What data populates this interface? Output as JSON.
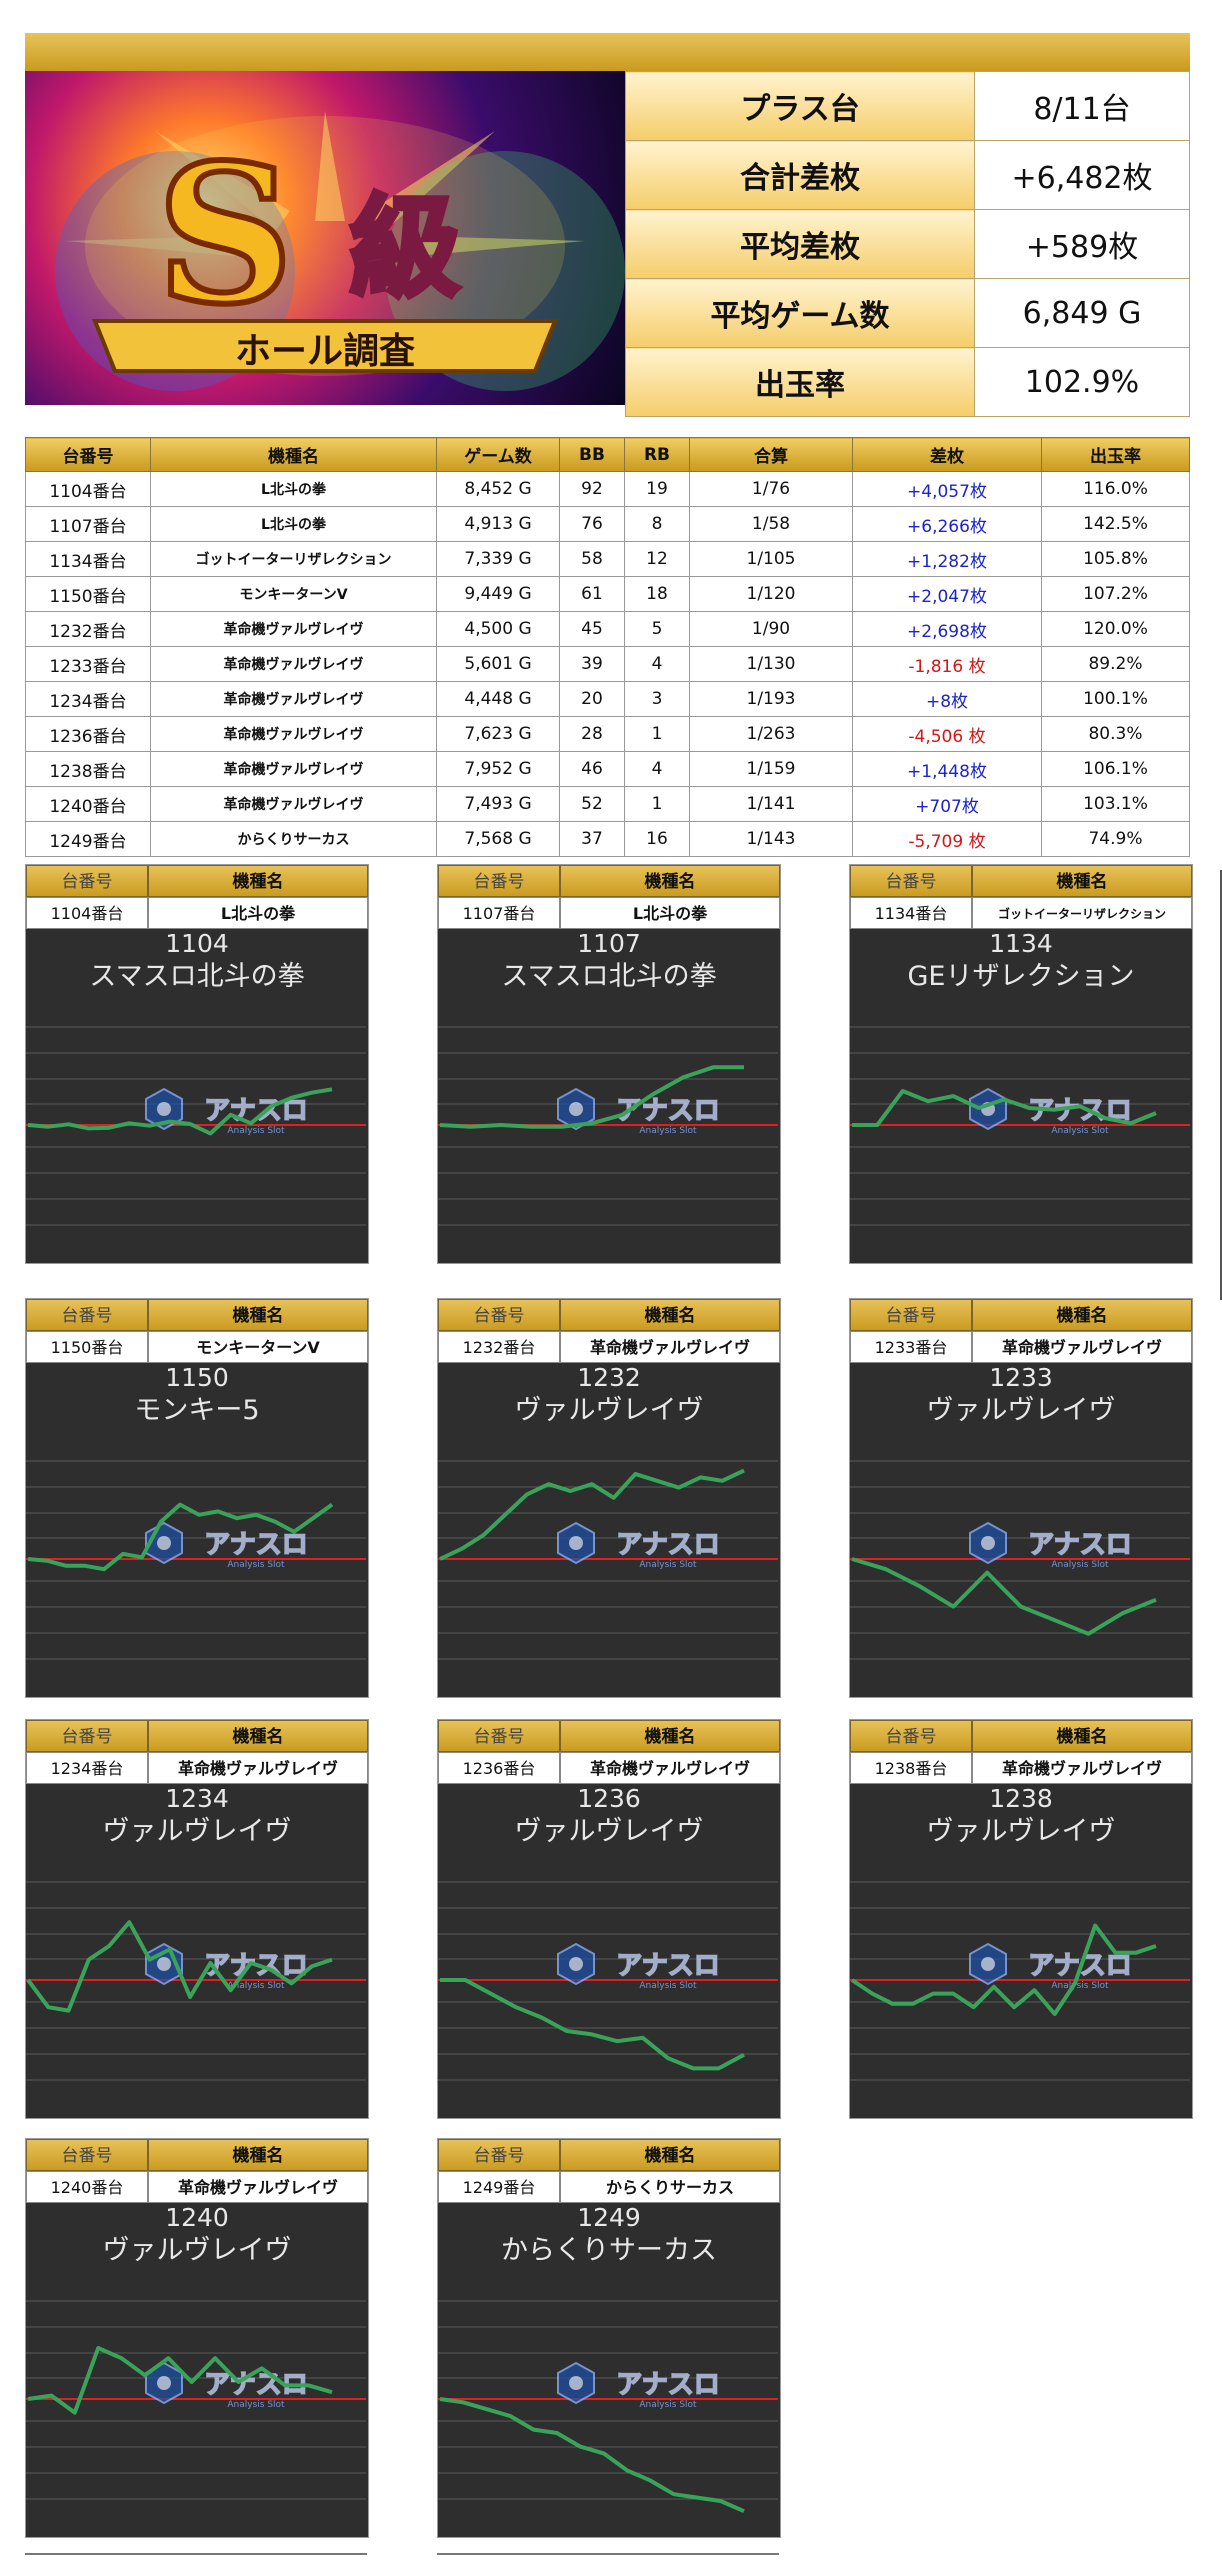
{
  "banner": {
    "logo_letter": "S",
    "logo_kanji": "級",
    "logo_ribbon": "ホール調査"
  },
  "summary": [
    {
      "label": "プラス台",
      "value": "8/11台"
    },
    {
      "label": "合計差枚",
      "value": "+6,482枚"
    },
    {
      "label": "平均差枚",
      "value": "+589枚"
    },
    {
      "label": "平均ゲーム数",
      "value": "6,849 G"
    },
    {
      "label": "出玉率",
      "value": "102.9%"
    }
  ],
  "table": {
    "headers": [
      "台番号",
      "機種名",
      "ゲーム数",
      "BB",
      "RB",
      "合算",
      "差枚",
      "出玉率"
    ],
    "rows": [
      [
        "1104番台",
        "L北斗の拳",
        "8,452 G",
        "92",
        "19",
        "1/76",
        "+4,057枚",
        "116.0%"
      ],
      [
        "1107番台",
        "L北斗の拳",
        "4,913 G",
        "76",
        "8",
        "1/58",
        "+6,266枚",
        "142.5%"
      ],
      [
        "1134番台",
        "ゴットイーターリザレクション",
        "7,339 G",
        "58",
        "12",
        "1/105",
        "+1,282枚",
        "105.8%"
      ],
      [
        "1150番台",
        "モンキーターンV",
        "9,449 G",
        "61",
        "18",
        "1/120",
        "+2,047枚",
        "107.2%"
      ],
      [
        "1232番台",
        "革命機ヴァルヴレイヴ",
        "4,500 G",
        "45",
        "5",
        "1/90",
        "+2,698枚",
        "120.0%"
      ],
      [
        "1233番台",
        "革命機ヴァルヴレイヴ",
        "5,601 G",
        "39",
        "4",
        "1/130",
        "-1,816 枚",
        "89.2%"
      ],
      [
        "1234番台",
        "革命機ヴァルヴレイヴ",
        "4,448 G",
        "20",
        "3",
        "1/193",
        "+8枚",
        "100.1%"
      ],
      [
        "1236番台",
        "革命機ヴァルヴレイヴ",
        "7,623 G",
        "28",
        "1",
        "1/263",
        "-4,506 枚",
        "80.3%"
      ],
      [
        "1238番台",
        "革命機ヴァルヴレイヴ",
        "7,952 G",
        "46",
        "4",
        "1/159",
        "+1,448枚",
        "106.1%"
      ],
      [
        "1240番台",
        "革命機ヴァルヴレイヴ",
        "7,493 G",
        "52",
        "1",
        "1/141",
        "+707枚",
        "103.1%"
      ],
      [
        "1249番台",
        "からくりサーカス",
        "7,568 G",
        "37",
        "16",
        "1/143",
        "-5,709 枚",
        "74.9%"
      ]
    ]
  },
  "cards_header": {
    "col_a": "台番号",
    "col_b": "機種名"
  },
  "watermark": {
    "brand": "アナスロ",
    "sub": "Analysis Slot"
  },
  "colors": {
    "line": "#3aa35a",
    "zero_line": "#e02020",
    "card_bg": "#2e2e2e",
    "positive": "#1d24c9",
    "negative": "#d31616"
  },
  "cards": [
    {
      "machine": "1104番台",
      "model": "L北斗の拳",
      "num": "1104",
      "title": "スマスロ北斗の拳",
      "graph": [
        0,
        -0.05,
        0.02,
        -0.1,
        -0.08,
        0.05,
        -0.02,
        0.1,
        0.03,
        -0.25,
        0.3,
        0.05,
        0.55,
        0.8,
        0.95,
        1.05
      ]
    },
    {
      "machine": "1107番台",
      "model": "L北斗の拳",
      "num": "1107",
      "title": "スマスロ北斗の拳",
      "graph": [
        0,
        -0.05,
        0,
        -0.05,
        -0.05,
        0.05,
        0.3,
        0.9,
        1.4,
        1.7,
        1.7
      ]
    },
    {
      "machine": "1134番台",
      "model": "ゴットイーターリザレクション",
      "num": "1134",
      "title": "GEリザレクション",
      "graph": [
        0,
        0,
        1.0,
        0.7,
        0.85,
        0.5,
        0.75,
        0.5,
        0.45,
        0.55,
        0.2,
        0.05,
        0.35
      ]
    },
    {
      "machine": "1150番台",
      "model": "モンキーターンV",
      "num": "1150",
      "title": "モンキー5",
      "graph": [
        0,
        -0.05,
        -0.2,
        -0.2,
        -0.3,
        0.15,
        0.05,
        1.1,
        1.6,
        1.3,
        1.4,
        1.2,
        1.3,
        1.1,
        0.8,
        1.2,
        1.6
      ]
    },
    {
      "machine": "1232番台",
      "model": "革命機ヴァルヴレイヴ",
      "num": "1232",
      "title": "ヴァルヴレイヴ",
      "graph": [
        0,
        0.3,
        0.7,
        1.3,
        1.9,
        2.2,
        2.0,
        2.2,
        1.8,
        2.5,
        2.3,
        2.1,
        2.4,
        2.3,
        2.6
      ]
    },
    {
      "machine": "1233番台",
      "model": "革命機ヴァルヴレイヴ",
      "num": "1233",
      "title": "ヴァルヴレイヴ",
      "graph": [
        0,
        -0.3,
        -0.8,
        -1.4,
        -0.4,
        -1.4,
        -1.8,
        -2.2,
        -1.6,
        -1.2
      ]
    },
    {
      "machine": "1234番台",
      "model": "革命機ヴァルヴレイヴ",
      "num": "1234",
      "title": "ヴァルヴレイヴ",
      "graph": [
        0,
        -0.8,
        -0.9,
        0.6,
        1.0,
        1.7,
        0.6,
        0.9,
        -0.5,
        0.5,
        -0.3,
        0.5,
        0.3,
        -0.1,
        0.4,
        0.6
      ]
    },
    {
      "machine": "1236番台",
      "model": "革命機ヴァルヴレイヴ",
      "num": "1236",
      "title": "ヴァルヴレイヴ",
      "graph": [
        0,
        0,
        -0.4,
        -0.8,
        -1.1,
        -1.5,
        -1.6,
        -1.8,
        -1.7,
        -2.3,
        -2.6,
        -2.6,
        -2.2
      ]
    },
    {
      "machine": "1238番台",
      "model": "革命機ヴァルヴレイヴ",
      "num": "1238",
      "title": "ヴァルヴレイヴ",
      "graph": [
        0,
        -0.4,
        -0.7,
        -0.7,
        -0.4,
        -0.4,
        -0.8,
        -0.2,
        -0.8,
        -0.3,
        -1.0,
        -0.1,
        1.6,
        0.8,
        0.8,
        1.0
      ]
    },
    {
      "machine": "1240番台",
      "model": "革命機ヴァルヴレイヴ",
      "num": "1240",
      "title": "ヴァルヴレイヴ",
      "graph": [
        0,
        0.1,
        -0.4,
        1.5,
        1.2,
        0.7,
        1.2,
        0.5,
        1.2,
        0.5,
        0.9,
        0.4,
        0.4,
        0.2
      ]
    },
    {
      "machine": "1249番台",
      "model": "からくりサーカス",
      "num": "1249",
      "title": "からくりサーカス",
      "graph": [
        0,
        -0.1,
        -0.3,
        -0.5,
        -0.9,
        -1.0,
        -1.4,
        -1.6,
        -2.1,
        -2.4,
        -2.8,
        -2.9,
        -3.0,
        -3.3
      ]
    }
  ]
}
